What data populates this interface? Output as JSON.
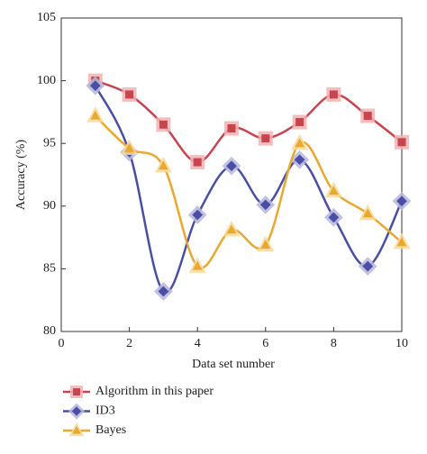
{
  "chart_data": {
    "type": "line",
    "x_label": "Data set number",
    "y_label": "Accuracy (%)",
    "x": [
      1,
      2,
      3,
      4,
      5,
      6,
      7,
      8,
      9,
      10
    ],
    "series": [
      {
        "name": "Algorithm in this paper",
        "color": "#c9444f",
        "halo": "#f1b3b3",
        "marker": "square",
        "values": [
          100.0,
          98.9,
          96.5,
          93.5,
          96.2,
          95.4,
          96.7,
          98.9,
          97.2,
          95.1
        ]
      },
      {
        "name": "ID3",
        "color": "#4a4fa6",
        "halo": "#b7b6dc",
        "marker": "diamond",
        "values": [
          99.6,
          94.3,
          83.2,
          89.3,
          93.2,
          90.1,
          93.7,
          89.1,
          85.2,
          90.4
        ]
      },
      {
        "name": "Bayes",
        "color": "#e9a82e",
        "halo": "#f6d99a",
        "marker": "triangle",
        "values": [
          97.2,
          94.6,
          93.2,
          85.2,
          88.1,
          86.9,
          95.0,
          91.2,
          89.4,
          87.1
        ]
      }
    ],
    "xlim": [
      0,
      10
    ],
    "xticks": [
      0,
      2,
      4,
      6,
      8,
      10
    ],
    "ylim": [
      80,
      105
    ],
    "yticks": [
      80,
      85,
      90,
      95,
      100,
      105
    ],
    "smooth": true,
    "legend": "bottom"
  }
}
